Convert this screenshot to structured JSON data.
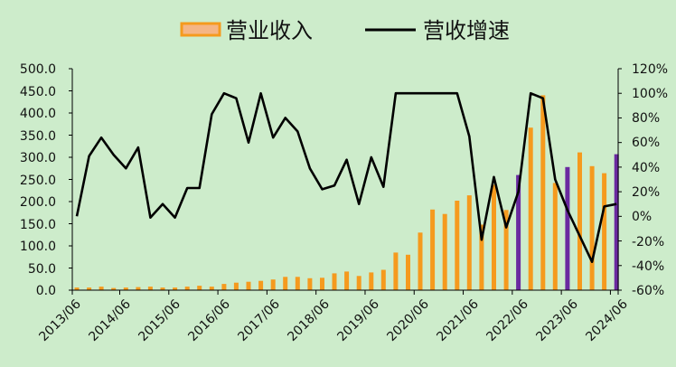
{
  "chart_data": {
    "type": "bar+line",
    "legend": {
      "items": [
        {
          "label": "营业收入",
          "kind": "bar",
          "color": "#f59a1e"
        },
        {
          "label": "营收增速",
          "kind": "line",
          "color": "#000000"
        }
      ],
      "placement": "top-center"
    },
    "left_axis": {
      "ylim": [
        0,
        500
      ],
      "ticks": [
        "0.0",
        "50.0",
        "100.0",
        "150.0",
        "200.0",
        "250.0",
        "300.0",
        "350.0",
        "400.0",
        "450.0",
        "500.0"
      ]
    },
    "right_axis": {
      "ylim": [
        -60,
        120
      ],
      "ticks": [
        "-60%",
        "-40%",
        "-20%",
        "0%",
        "20%",
        "40%",
        "60%",
        "80%",
        "100%",
        "120%"
      ]
    },
    "x_tick_labels": [
      "2013/06",
      "2014/06",
      "2015/06",
      "2016/06",
      "2017/06",
      "2018/06",
      "2019/06",
      "2020/06",
      "2021/06",
      "2022/06",
      "2023/06",
      "2024/06"
    ],
    "bar_colors": {
      "default": "#f59a1e",
      "highlight": "#6a2aa0"
    },
    "series": [
      {
        "name": "营业收入",
        "type": "bar",
        "axis": "left",
        "values": [
          6,
          6,
          8,
          5,
          6,
          7,
          8,
          6,
          6,
          8,
          10,
          8,
          14,
          17,
          19,
          21,
          24,
          30,
          30,
          27,
          28,
          38,
          42,
          32,
          40,
          46,
          85,
          80,
          130,
          182,
          172,
          202,
          214,
          148,
          238,
          181,
          260,
          367,
          440,
          242,
          278,
          311,
          280,
          264,
          307
        ],
        "highlight_indices": [
          36,
          40,
          44
        ]
      },
      {
        "name": "营收增速",
        "type": "line",
        "axis": "left-relative-right",
        "values": [
          0,
          49,
          64,
          50,
          39,
          56,
          -1,
          10,
          -1,
          23,
          23,
          83,
          100,
          96,
          60,
          100,
          64,
          80,
          69,
          39,
          22,
          25,
          46,
          10,
          48,
          24,
          100,
          100,
          100,
          100,
          100,
          100,
          65,
          -19,
          32,
          -9,
          20,
          100,
          96,
          30,
          5,
          -16,
          -37,
          8,
          10
        ]
      }
    ]
  }
}
